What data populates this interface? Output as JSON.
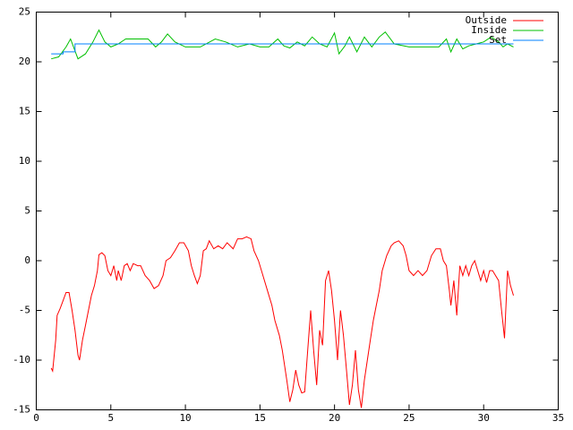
{
  "chart_data": {
    "type": "line",
    "xlim": [
      0,
      35
    ],
    "xticks": [
      0,
      5,
      10,
      15,
      20,
      25,
      30,
      35
    ],
    "ylim": [
      -15,
      25
    ],
    "yticks": [
      -15,
      -10,
      -5,
      0,
      5,
      10,
      15,
      20,
      25
    ],
    "series": [
      {
        "name": "Outside",
        "color": "#ff0000",
        "x": [
          1,
          1.1,
          1.3,
          1.4,
          1.6,
          1.8,
          2.0,
          2.2,
          2.4,
          2.6,
          2.8,
          2.9,
          3.1,
          3.3,
          3.5,
          3.7,
          3.9,
          4.1,
          4.2,
          4.4,
          4.6,
          4.8,
          5.0,
          5.2,
          5.4,
          5.5,
          5.7,
          5.9,
          6.1,
          6.3,
          6.5,
          6.8,
          7.0,
          7.3,
          7.6,
          7.9,
          8.2,
          8.5,
          8.7,
          9.0,
          9.3,
          9.6,
          9.9,
          10.2,
          10.4,
          10.6,
          10.8,
          11.0,
          11.2,
          11.4,
          11.6,
          11.9,
          12.2,
          12.5,
          12.8,
          13.2,
          13.5,
          13.8,
          14.1,
          14.4,
          14.6,
          14.9,
          15.2,
          15.5,
          15.8,
          16.0,
          16.3,
          16.5,
          16.8,
          17.0,
          17.2,
          17.4,
          17.6,
          17.8,
          18.0,
          18.2,
          18.4,
          18.6,
          18.8,
          19.0,
          19.2,
          19.4,
          19.6,
          19.8,
          20.0,
          20.2,
          20.4,
          20.6,
          20.8,
          21.0,
          21.2,
          21.4,
          21.6,
          21.8,
          22.0,
          22.2,
          22.4,
          22.6,
          22.8,
          23.0,
          23.2,
          23.5,
          23.8,
          24.0,
          24.3,
          24.6,
          24.8,
          25.0,
          25.3,
          25.6,
          25.9,
          26.2,
          26.5,
          26.8,
          27.1,
          27.3,
          27.5,
          27.7,
          27.8,
          28.0,
          28.2,
          28.4,
          28.6,
          28.8,
          29.0,
          29.2,
          29.4,
          29.6,
          29.8,
          30.0,
          30.2,
          30.4,
          30.6,
          30.8,
          31.0,
          31.2,
          31.4,
          31.6,
          31.8,
          32.0
        ],
        "values": [
          -10.8,
          -11.1,
          -8,
          -5.5,
          -4.8,
          -4,
          -3.2,
          -3.2,
          -5,
          -7,
          -9.5,
          -10,
          -8,
          -6.5,
          -5,
          -3.5,
          -2.5,
          -1,
          0.6,
          0.8,
          0.5,
          -1,
          -1.5,
          -0.5,
          -2,
          -1,
          -2,
          -0.5,
          -0.3,
          -1,
          -0.3,
          -0.5,
          -0.5,
          -1.5,
          -2,
          -2.8,
          -2.5,
          -1.5,
          0,
          0.3,
          1,
          1.8,
          1.8,
          1,
          -0.5,
          -1.5,
          -2.3,
          -1.5,
          1,
          1.2,
          2,
          1.2,
          1.5,
          1.2,
          1.8,
          1.2,
          2.2,
          2.2,
          2.4,
          2.2,
          1,
          0,
          -1.5,
          -3,
          -4.5,
          -6,
          -7.5,
          -9,
          -12,
          -14.2,
          -13,
          -11,
          -12.5,
          -13.3,
          -13.2,
          -9,
          -5,
          -9,
          -12.5,
          -7,
          -8.5,
          -2,
          -1,
          -3,
          -6,
          -10,
          -5,
          -7.5,
          -11,
          -14.5,
          -12.5,
          -9,
          -13,
          -14.8,
          -12,
          -10,
          -8,
          -6,
          -4.5,
          -3,
          -1,
          0.5,
          1.5,
          1.8,
          2,
          1.5,
          0.5,
          -1,
          -1.5,
          -1,
          -1.5,
          -1,
          0.5,
          1.2,
          1.2,
          0,
          -0.5,
          -3,
          -4.5,
          -2,
          -5.5,
          -0.5,
          -1.5,
          -0.5,
          -1.5,
          -0.5,
          0,
          -1,
          -2,
          -1,
          -2.2,
          -1,
          -1,
          -1.5,
          -2,
          -5,
          -7.8,
          -1,
          -2.5,
          -3.5
        ]
      },
      {
        "name": "Inside",
        "color": "#00c000",
        "x": [
          1,
          1.5,
          2.0,
          2.3,
          2.8,
          3.3,
          3.8,
          4.2,
          4.6,
          5.0,
          5.5,
          6.0,
          6.8,
          7.5,
          8.0,
          8.4,
          8.8,
          9.3,
          10.0,
          11.0,
          12.0,
          12.7,
          13.5,
          14.3,
          15.0,
          15.6,
          16.2,
          16.6,
          17.0,
          17.5,
          18.0,
          18.5,
          19.0,
          19.5,
          20.0,
          20.3,
          20.7,
          21.0,
          21.5,
          22.0,
          22.5,
          23.0,
          23.4,
          24.0,
          25.0,
          26.0,
          27.0,
          27.5,
          27.8,
          28.2,
          28.6,
          29.0,
          29.5,
          30.0,
          30.5,
          31.0,
          31.3,
          31.6,
          32.0
        ],
        "values": [
          20.3,
          20.5,
          21.5,
          22.3,
          20.3,
          20.8,
          22,
          23.2,
          22,
          21.5,
          21.8,
          22.3,
          22.3,
          22.3,
          21.5,
          22,
          22.8,
          22,
          21.5,
          21.5,
          22.3,
          22,
          21.5,
          21.8,
          21.5,
          21.5,
          22.3,
          21.6,
          21.4,
          22,
          21.6,
          22.5,
          21.8,
          21.5,
          22.9,
          20.8,
          21.6,
          22.5,
          21,
          22.5,
          21.5,
          22.5,
          23,
          21.8,
          21.5,
          21.5,
          21.5,
          22.3,
          21,
          22.3,
          21.3,
          21.6,
          21.8,
          22,
          22.5,
          22,
          21.5,
          21.8,
          21.5
        ]
      },
      {
        "name": "Set",
        "color": "#0080ff",
        "x": [
          1,
          1.8,
          1.8,
          2.6,
          2.6,
          32
        ],
        "values": [
          20.8,
          20.8,
          21.0,
          21.0,
          21.8,
          21.8
        ]
      }
    ]
  }
}
